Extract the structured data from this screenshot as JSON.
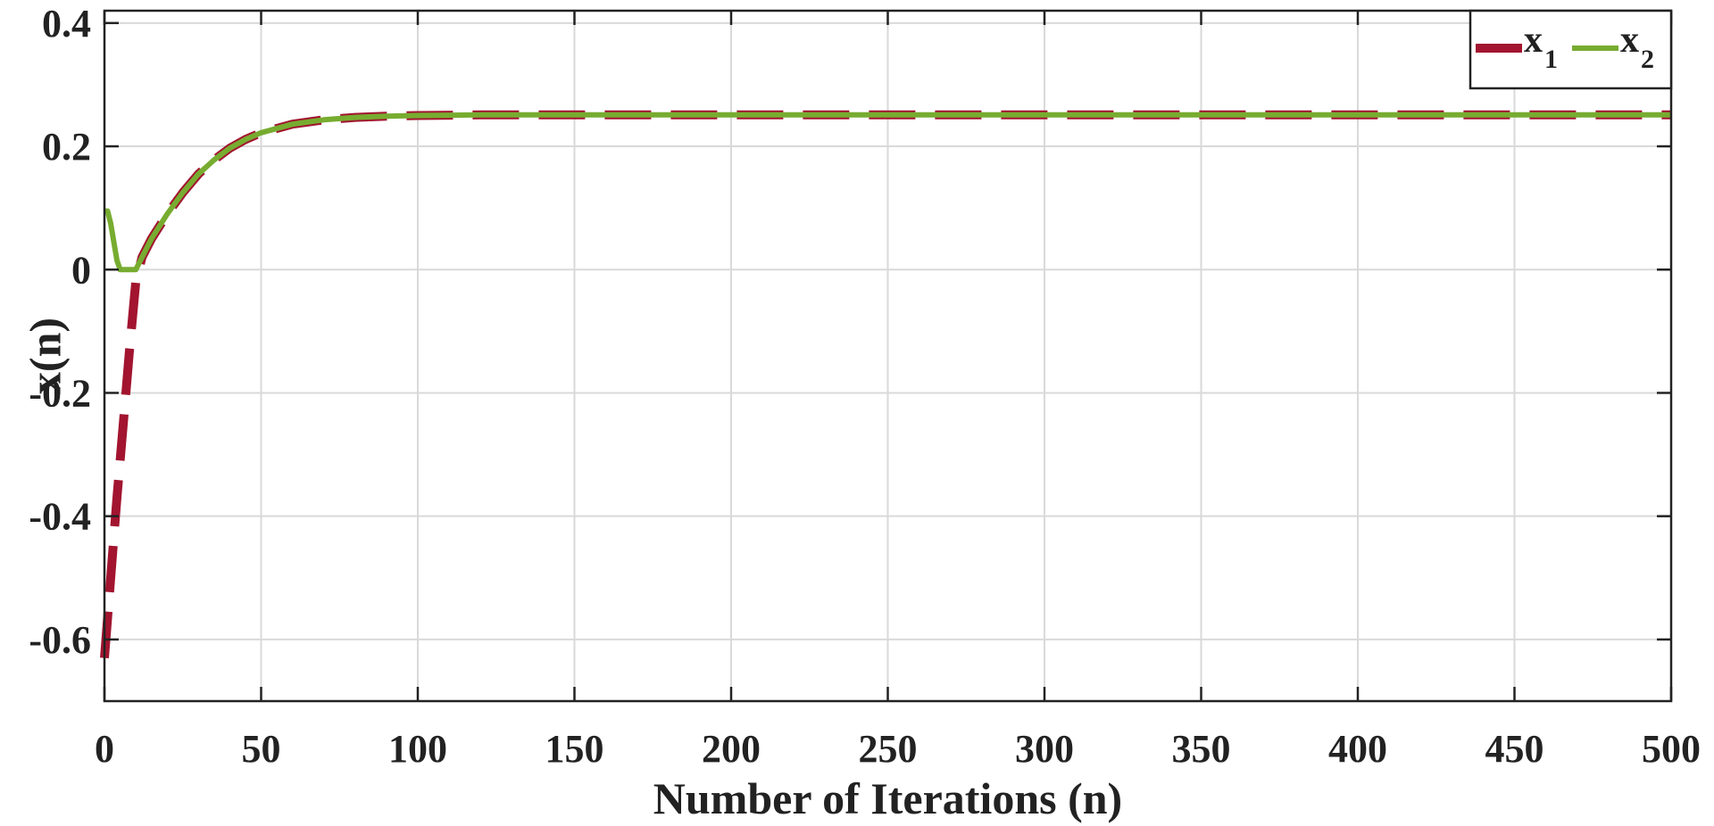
{
  "chart_data": {
    "type": "line",
    "title": "",
    "xlabel": "Number of Iterations (n)",
    "ylabel": "x(n)",
    "xlim": [
      0,
      500
    ],
    "ylim": [
      -0.7,
      0.42
    ],
    "xticks": [
      0,
      50,
      100,
      150,
      200,
      250,
      300,
      350,
      400,
      450,
      500
    ],
    "xtick_labels": [
      "0",
      "50",
      "100",
      "150",
      "200",
      "250",
      "300",
      "350",
      "400",
      "450",
      "500"
    ],
    "yticks": [
      -0.6,
      -0.4,
      -0.2,
      0,
      0.2,
      0.4
    ],
    "ytick_labels": [
      "-0.6",
      "-0.4",
      "-0.2",
      "0",
      "0.2",
      "0.4"
    ],
    "grid": true,
    "legend": {
      "placement": "top-right",
      "orientation": "horizontal",
      "entries": [
        {
          "base": "x",
          "sub": "1",
          "color": "#a2142f",
          "style": "dashed"
        },
        {
          "base": "x",
          "sub": "2",
          "color": "#77ac30",
          "style": "solid"
        }
      ]
    },
    "series": [
      {
        "color": "#a2142f",
        "style": "dashed",
        "x": [
          0,
          2,
          4,
          6,
          8,
          10,
          12,
          15,
          20,
          25,
          30,
          35,
          40,
          45,
          50,
          60,
          70,
          80,
          90,
          100,
          120,
          150,
          200,
          300,
          400,
          500
        ],
        "y": [
          -0.63,
          -0.5,
          -0.37,
          -0.25,
          -0.13,
          -0.02,
          0.02,
          0.05,
          0.09,
          0.125,
          0.155,
          0.178,
          0.197,
          0.211,
          0.222,
          0.236,
          0.243,
          0.247,
          0.249,
          0.25,
          0.251,
          0.251,
          0.251,
          0.251,
          0.251,
          0.251
        ]
      },
      {
        "color": "#77ac30",
        "style": "solid",
        "x": [
          0,
          1,
          2,
          3,
          4,
          5,
          6,
          8,
          10,
          12,
          15,
          20,
          25,
          30,
          35,
          40,
          45,
          50,
          60,
          70,
          80,
          90,
          100,
          120,
          150,
          200,
          300,
          400,
          500
        ],
        "y": [
          0.095,
          0.095,
          0.075,
          0.045,
          0.015,
          0.0,
          0.0,
          0.0,
          0.0,
          0.02,
          0.05,
          0.09,
          0.125,
          0.155,
          0.178,
          0.197,
          0.211,
          0.222,
          0.236,
          0.243,
          0.247,
          0.249,
          0.25,
          0.251,
          0.251,
          0.251,
          0.251,
          0.251,
          0.251
        ]
      }
    ]
  }
}
